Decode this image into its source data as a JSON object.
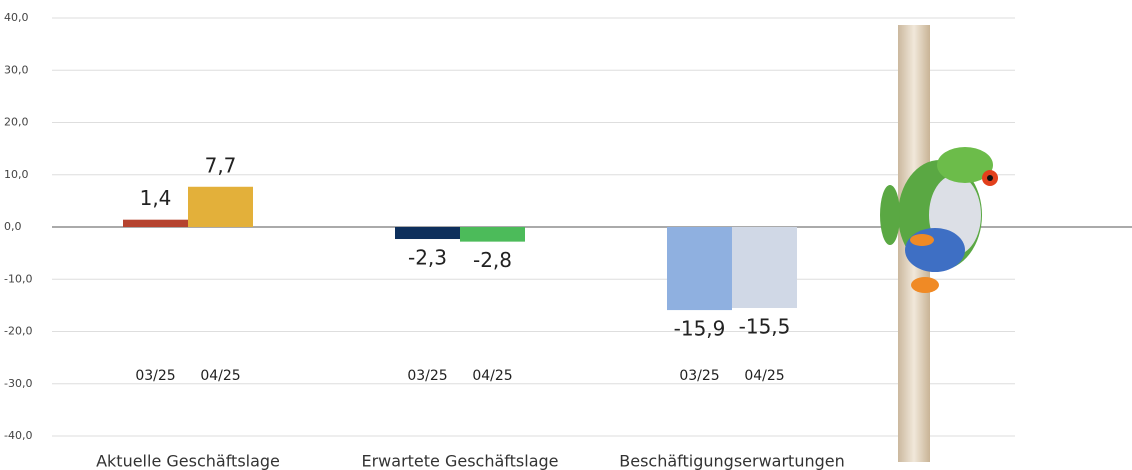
{
  "chart_data": {
    "type": "bar",
    "categories": [
      "Aktuelle Geschäftslage",
      "Erwartete Geschäftslage",
      "Beschäftigungserwartungen"
    ],
    "series": [
      {
        "name": "03/25",
        "colors": [
          "#b5432f",
          "#0d2f5c",
          "#8fb0e0"
        ],
        "values": [
          1.4,
          -2.3,
          -15.9
        ],
        "value_labels": [
          "1,4",
          "-2,3",
          "-15,9"
        ]
      },
      {
        "name": "04/25",
        "colors": [
          "#e3b03a",
          "#4cbb5a",
          "#d0d8e6"
        ],
        "values": [
          7.7,
          -2.8,
          -15.5
        ],
        "value_labels": [
          "7,7",
          "-2,8",
          "-15,5"
        ]
      }
    ],
    "ylim": [
      -40,
      40
    ],
    "yticks": [
      {
        "value": 40,
        "label": "40,0"
      },
      {
        "value": 30,
        "label": "30,0"
      },
      {
        "value": 20,
        "label": "20,0"
      },
      {
        "value": 10,
        "label": "10,0"
      },
      {
        "value": 0,
        "label": "0,0"
      },
      {
        "value": -10,
        "label": "-10,0"
      },
      {
        "value": -20,
        "label": "-20,0"
      },
      {
        "value": -30,
        "label": "-30,0"
      },
      {
        "value": -40,
        "label": "-40,0"
      }
    ],
    "grid": true
  }
}
